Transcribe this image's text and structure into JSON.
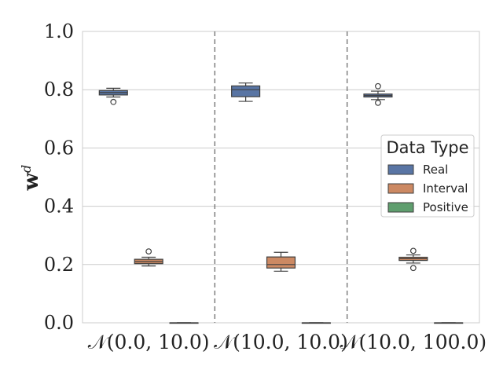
{
  "chart_data": {
    "type": "box",
    "ylabel": "w",
    "ylabel_superscript": "d",
    "ylim": [
      0.0,
      1.0
    ],
    "yticks": [
      "0.0",
      "0.2",
      "0.4",
      "0.6",
      "0.8",
      "1.0"
    ],
    "grid": true,
    "categories": [
      "𝒩(0.0, 10.0)",
      "𝒩(10.0, 10.0)",
      "𝒩(10.0, 100.0)"
    ],
    "legend": {
      "title": "Data Type",
      "position": "center-right",
      "entries": [
        "Real",
        "Interval",
        "Positive"
      ]
    },
    "series": [
      {
        "name": "Real",
        "color": "#5975a4",
        "boxes": [
          {
            "whisker_low": 0.775,
            "q1": 0.782,
            "median": 0.79,
            "q3": 0.797,
            "whisker_high": 0.805,
            "outliers": [
              0.758
            ]
          },
          {
            "whisker_low": 0.76,
            "q1": 0.776,
            "median": 0.8,
            "q3": 0.813,
            "whisker_high": 0.823,
            "outliers": []
          },
          {
            "whisker_low": 0.766,
            "q1": 0.775,
            "median": 0.78,
            "q3": 0.785,
            "whisker_high": 0.795,
            "outliers": [
              0.812,
              0.755
            ]
          }
        ]
      },
      {
        "name": "Interval",
        "color": "#cc8963",
        "boxes": [
          {
            "whisker_low": 0.195,
            "q1": 0.203,
            "median": 0.21,
            "q3": 0.218,
            "whisker_high": 0.225,
            "outliers": [
              0.245
            ]
          },
          {
            "whisker_low": 0.177,
            "q1": 0.188,
            "median": 0.2,
            "q3": 0.226,
            "whisker_high": 0.242,
            "outliers": []
          },
          {
            "whisker_low": 0.205,
            "q1": 0.214,
            "median": 0.22,
            "q3": 0.225,
            "whisker_high": 0.233,
            "outliers": [
              0.247,
              0.188
            ]
          }
        ]
      },
      {
        "name": "Positive",
        "color": "#5f9e6e",
        "boxes": [
          {
            "whisker_low": 0.0,
            "q1": 0.0,
            "median": 0.0,
            "q3": 0.0,
            "whisker_high": 0.0,
            "outliers": []
          },
          {
            "whisker_low": 0.0,
            "q1": 0.0,
            "median": 0.0,
            "q3": 0.0,
            "whisker_high": 0.0,
            "outliers": []
          },
          {
            "whisker_low": 0.0,
            "q1": 0.0,
            "median": 0.0,
            "q3": 0.0,
            "whisker_high": 0.0,
            "outliers": []
          }
        ]
      }
    ],
    "separators": true
  }
}
